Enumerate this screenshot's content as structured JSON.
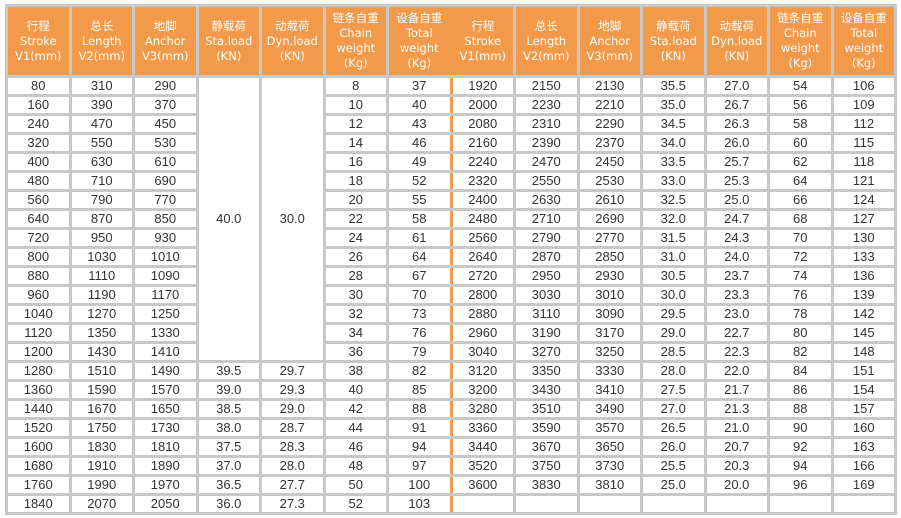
{
  "headers": [
    [
      "行程",
      "Stroke",
      "V1(mm)"
    ],
    [
      "总长",
      "Length",
      "V2(mm)"
    ],
    [
      "地脚",
      "Anchor",
      "V3(mm)"
    ],
    [
      "静载荷",
      "Sta.load",
      "(KN)"
    ],
    [
      "动载荷",
      "Dyn.load",
      "(KN)"
    ],
    [
      "链条自重",
      "Chain",
      "weight",
      "(Kg)"
    ],
    [
      "设备自重",
      "Total",
      "weight",
      "(Kg)"
    ]
  ],
  "accent_color": "#f29a4a",
  "merged_load": {
    "sta": "40.0",
    "dyn": "30.0",
    "rows": 15
  },
  "left_rows": [
    [
      "80",
      "310",
      "290",
      "",
      "",
      "8",
      "37"
    ],
    [
      "160",
      "390",
      "370",
      "",
      "",
      "10",
      "40"
    ],
    [
      "240",
      "470",
      "450",
      "",
      "",
      "12",
      "43"
    ],
    [
      "320",
      "550",
      "530",
      "",
      "",
      "14",
      "46"
    ],
    [
      "400",
      "630",
      "610",
      "",
      "",
      "16",
      "49"
    ],
    [
      "480",
      "710",
      "690",
      "",
      "",
      "18",
      "52"
    ],
    [
      "560",
      "790",
      "770",
      "",
      "",
      "20",
      "55"
    ],
    [
      "640",
      "870",
      "850",
      "",
      "",
      "22",
      "58"
    ],
    [
      "720",
      "950",
      "930",
      "",
      "",
      "24",
      "61"
    ],
    [
      "800",
      "1030",
      "1010",
      "",
      "",
      "26",
      "64"
    ],
    [
      "880",
      "1110",
      "1090",
      "",
      "",
      "28",
      "67"
    ],
    [
      "960",
      "1190",
      "1170",
      "",
      "",
      "30",
      "70"
    ],
    [
      "1040",
      "1270",
      "1250",
      "",
      "",
      "32",
      "73"
    ],
    [
      "1120",
      "1350",
      "1330",
      "",
      "",
      "34",
      "76"
    ],
    [
      "1200",
      "1430",
      "1410",
      "",
      "",
      "36",
      "79"
    ],
    [
      "1280",
      "1510",
      "1490",
      "39.5",
      "29.7",
      "38",
      "82"
    ],
    [
      "1360",
      "1590",
      "1570",
      "39.0",
      "29.3",
      "40",
      "85"
    ],
    [
      "1440",
      "1670",
      "1650",
      "38.5",
      "29.0",
      "42",
      "88"
    ],
    [
      "1520",
      "1750",
      "1730",
      "38.0",
      "28.7",
      "44",
      "91"
    ],
    [
      "1600",
      "1830",
      "1810",
      "37.5",
      "28.3",
      "46",
      "94"
    ],
    [
      "1680",
      "1910",
      "1890",
      "37.0",
      "28.0",
      "48",
      "97"
    ],
    [
      "1760",
      "1990",
      "1970",
      "36.5",
      "27.7",
      "50",
      "100"
    ],
    [
      "1840",
      "2070",
      "2050",
      "36.0",
      "27.3",
      "52",
      "103"
    ]
  ],
  "right_rows": [
    [
      "1920",
      "2150",
      "2130",
      "35.5",
      "27.0",
      "54",
      "106"
    ],
    [
      "2000",
      "2230",
      "2210",
      "35.0",
      "26.7",
      "56",
      "109"
    ],
    [
      "2080",
      "2310",
      "2290",
      "34.5",
      "26.3",
      "58",
      "112"
    ],
    [
      "2160",
      "2390",
      "2370",
      "34.0",
      "26.0",
      "60",
      "115"
    ],
    [
      "2240",
      "2470",
      "2450",
      "33.5",
      "25.7",
      "62",
      "118"
    ],
    [
      "2320",
      "2550",
      "2530",
      "33.0",
      "25.3",
      "64",
      "121"
    ],
    [
      "2400",
      "2630",
      "2610",
      "32.5",
      "25.0",
      "66",
      "124"
    ],
    [
      "2480",
      "2710",
      "2690",
      "32.0",
      "24.7",
      "68",
      "127"
    ],
    [
      "2560",
      "2790",
      "2770",
      "31.5",
      "24.3",
      "70",
      "130"
    ],
    [
      "2640",
      "2870",
      "2850",
      "31.0",
      "24.0",
      "72",
      "133"
    ],
    [
      "2720",
      "2950",
      "2930",
      "30.5",
      "23.7",
      "74",
      "136"
    ],
    [
      "2800",
      "3030",
      "3010",
      "30.0",
      "23.3",
      "76",
      "139"
    ],
    [
      "2880",
      "3110",
      "3090",
      "29.5",
      "23.0",
      "78",
      "142"
    ],
    [
      "2960",
      "3190",
      "3170",
      "29.0",
      "22.7",
      "80",
      "145"
    ],
    [
      "3040",
      "3270",
      "3250",
      "28.5",
      "22.3",
      "82",
      "148"
    ],
    [
      "3120",
      "3350",
      "3330",
      "28.0",
      "22.0",
      "84",
      "151"
    ],
    [
      "3200",
      "3430",
      "3410",
      "27.5",
      "21.7",
      "86",
      "154"
    ],
    [
      "3280",
      "3510",
      "3490",
      "27.0",
      "21.3",
      "88",
      "157"
    ],
    [
      "3360",
      "3590",
      "3570",
      "26.5",
      "21.0",
      "90",
      "160"
    ],
    [
      "3440",
      "3670",
      "3650",
      "26.0",
      "20.7",
      "92",
      "163"
    ],
    [
      "3520",
      "3750",
      "3730",
      "25.5",
      "20.3",
      "94",
      "166"
    ],
    [
      "3600",
      "3830",
      "3810",
      "25.0",
      "20.0",
      "96",
      "169"
    ],
    [
      "",
      "",
      "",
      "",
      "",
      "",
      ""
    ]
  ]
}
